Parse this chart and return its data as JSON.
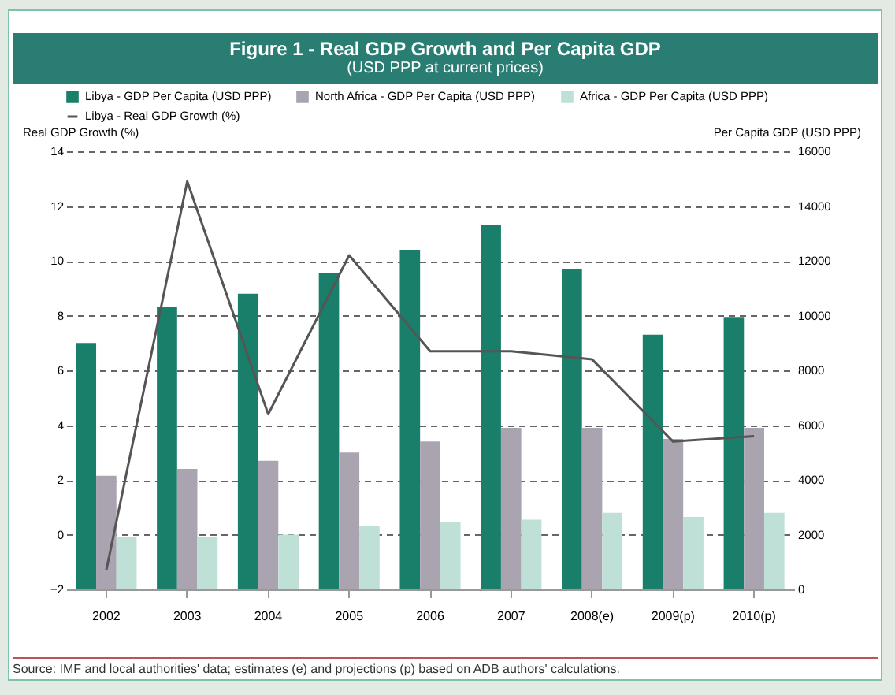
{
  "chart_data": {
    "type": "bar",
    "title": "Figure 1 - Real GDP Growth and Per Capita GDP",
    "subtitle": "(USD PPP at current prices)",
    "categories": [
      "2002",
      "2003",
      "2004",
      "2005",
      "2006",
      "2007",
      "2008(e)",
      "2009(p)",
      "2010(p)"
    ],
    "series": [
      {
        "name": "Libya - GDP Per Capita (USD PPP)",
        "type": "bar",
        "axis": "y2",
        "color": "#1a7f6a",
        "values": [
          9000,
          10300,
          10800,
          11550,
          12400,
          13300,
          11700,
          9300,
          9950
        ]
      },
      {
        "name": "North Africa - GDP Per Capita (USD PPP)",
        "type": "bar",
        "axis": "y2",
        "color": "#a9a4b0",
        "values": [
          4150,
          4400,
          4700,
          5000,
          5400,
          5900,
          5900,
          5500,
          5900
        ]
      },
      {
        "name": "Africa - GDP Per Capita (USD PPP)",
        "type": "bar",
        "axis": "y2",
        "color": "#bfe0d6",
        "values": [
          1900,
          1900,
          2000,
          2300,
          2450,
          2550,
          2800,
          2650,
          2800
        ]
      },
      {
        "name": "Libya - Real GDP Growth (%)",
        "type": "line",
        "color": "#555555",
        "values": [
          -1.3,
          12.9,
          4.4,
          10.2,
          6.7,
          6.7,
          6.4,
          3.4,
          3.6
        ]
      }
    ],
    "ylabel": "Real GDP Growth (%)",
    "y2label": "Per Capita GDP (USD PPP)",
    "ylim": [
      -2,
      14
    ],
    "yticks": [
      -2,
      0,
      2,
      4,
      6,
      8,
      10,
      12,
      14
    ],
    "y2lim": [
      0,
      16000
    ],
    "y2ticks": [
      0,
      2000,
      4000,
      6000,
      8000,
      10000,
      12000,
      14000,
      16000
    ],
    "grid": "y",
    "legend": "top",
    "marker": "none",
    "line_style": "solid",
    "annotations": [
      "Source: IMF and local authorities' data; estimates (e) and projections (p) based on ADB authors' calculations."
    ]
  }
}
